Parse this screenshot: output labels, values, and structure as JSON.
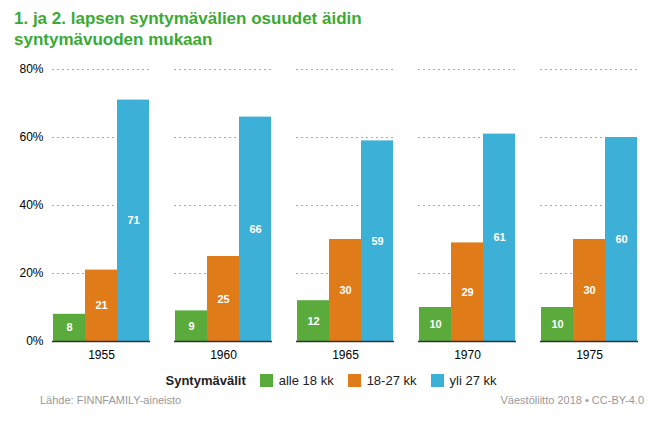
{
  "chart_data": {
    "type": "bar",
    "title": "1. ja 2. lapsen syntymävälien osuudet äidin\nsyntymävuoden mukaan",
    "title_color": "#3aaa35",
    "categories": [
      1955,
      1960,
      1965,
      1970,
      1975
    ],
    "series": [
      {
        "name": "alle 18 kk",
        "color": "#5aaa3c",
        "values": [
          8,
          9,
          12,
          10,
          10
        ]
      },
      {
        "name": "18-27 kk",
        "color": "#e07b1a",
        "values": [
          21,
          25,
          30,
          29,
          30
        ]
      },
      {
        "name": "yli 27 kk",
        "color": "#3db0d8",
        "values": [
          71,
          66,
          59,
          61,
          60
        ]
      }
    ],
    "ylim": [
      0,
      80
    ],
    "yticks": [
      {
        "value": 0,
        "label": "0%"
      },
      {
        "value": 20,
        "label": "20%"
      },
      {
        "value": 40,
        "label": "40%"
      },
      {
        "value": 60,
        "label": "60%"
      },
      {
        "value": 80,
        "label": "80%"
      }
    ],
    "grid": true,
    "data_labels": true,
    "legend": "bottom",
    "legend_title": "Syntymävälit",
    "annotations": [
      "Lähde: FINNFAMILY-aineisto",
      "Väestöliitto 2018 • CC-BY-4.0"
    ]
  }
}
